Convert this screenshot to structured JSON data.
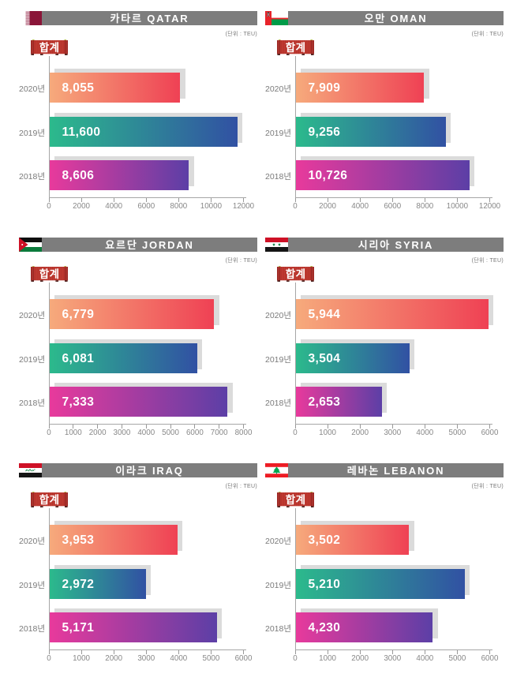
{
  "labels": {
    "unit": "(단위 : TEU)",
    "total_badge": "합계"
  },
  "colors": {
    "header_bg": "#7d7d7d",
    "header_text": "#ffffff",
    "axis_line": "#a6a6a6",
    "tick_label": "#888888",
    "category_label": "#7b7b7b",
    "bar_shadow": "#dbdbdb",
    "value_text": "#ffffff",
    "gradient_2020": [
      "#f6aa7c",
      "#ef4154"
    ],
    "gradient_2019": [
      "#2cba8c",
      "#3151a3"
    ],
    "gradient_2018": [
      "#e83a9c",
      "#5c3fa6"
    ],
    "badge_red": "#c23b32",
    "badge_red_dark": "#9c2723"
  },
  "chart_data": [
    {
      "type": "bar",
      "title": "카타르 QATAR",
      "flag": "qatar",
      "unit_note": "(단위 : TEU)",
      "legend": "합계",
      "categories": [
        "2020년",
        "2019년",
        "2018년"
      ],
      "values": [
        8055,
        11600,
        8606
      ],
      "value_labels": [
        "8,055",
        "11,600",
        "8,606"
      ],
      "xlim": [
        0,
        12000
      ],
      "xticks": [
        0,
        2000,
        4000,
        6000,
        8000,
        10000,
        12000
      ]
    },
    {
      "type": "bar",
      "title": "오만 OMAN",
      "flag": "oman",
      "unit_note": "(단위 : TEU)",
      "legend": "합계",
      "categories": [
        "2020년",
        "2019년",
        "2018년"
      ],
      "values": [
        7909,
        9256,
        10726
      ],
      "value_labels": [
        "7,909",
        "9,256",
        "10,726"
      ],
      "xlim": [
        0,
        12000
      ],
      "xticks": [
        0,
        2000,
        4000,
        6000,
        8000,
        10000,
        12000
      ]
    },
    {
      "type": "bar",
      "title": "요르단 JORDAN",
      "flag": "jordan",
      "unit_note": "(단위 : TEU)",
      "legend": "합계",
      "categories": [
        "2020년",
        "2019년",
        "2018년"
      ],
      "values": [
        6779,
        6081,
        7333
      ],
      "value_labels": [
        "6,779",
        "6,081",
        "7,333"
      ],
      "xlim": [
        0,
        8000
      ],
      "xticks": [
        0,
        1000,
        2000,
        3000,
        4000,
        5000,
        6000,
        7000,
        8000
      ]
    },
    {
      "type": "bar",
      "title": "시리아 SYRIA",
      "flag": "syria",
      "unit_note": "(단위 : TEU)",
      "legend": "합계",
      "categories": [
        "2020년",
        "2019년",
        "2018년"
      ],
      "values": [
        5944,
        3504,
        2653
      ],
      "value_labels": [
        "5,944",
        "3,504",
        "2,653"
      ],
      "xlim": [
        0,
        6000
      ],
      "xticks": [
        0,
        1000,
        2000,
        3000,
        4000,
        5000,
        6000
      ]
    },
    {
      "type": "bar",
      "title": "이라크 IRAQ",
      "flag": "iraq",
      "unit_note": "(단위 : TEU)",
      "legend": "합계",
      "categories": [
        "2020년",
        "2019년",
        "2018년"
      ],
      "values": [
        3953,
        2972,
        5171
      ],
      "value_labels": [
        "3,953",
        "2,972",
        "5,171"
      ],
      "xlim": [
        0,
        6000
      ],
      "xticks": [
        0,
        1000,
        2000,
        3000,
        4000,
        5000,
        6000
      ]
    },
    {
      "type": "bar",
      "title": "레바논 LEBANON",
      "flag": "lebanon",
      "unit_note": "(단위 : TEU)",
      "legend": "합계",
      "categories": [
        "2020년",
        "2019년",
        "2018년"
      ],
      "values": [
        3502,
        5210,
        4230
      ],
      "value_labels": [
        "3,502",
        "5,210",
        "4,230"
      ],
      "xlim": [
        0,
        6000
      ],
      "xticks": [
        0,
        1000,
        2000,
        3000,
        4000,
        5000,
        6000
      ]
    }
  ]
}
